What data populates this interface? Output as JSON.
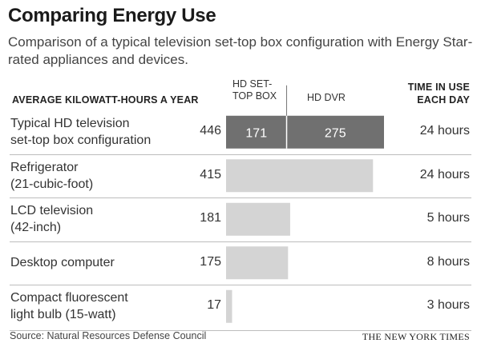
{
  "title": "Comparing Energy Use",
  "subtitle": "Comparison of a typical television set-top box configuration with Energy Star-rated appliances and devices.",
  "headers": {
    "kwh": "AVERAGE KILOWATT-HOURS A YEAR",
    "time_line1": "TIME IN USE",
    "time_line2": "EACH DAY",
    "seg1_line1": "HD SET-",
    "seg1_line2": "TOP BOX",
    "seg2": "HD DVR"
  },
  "source": "Source: Natural Resources Defense Council",
  "credit": "THE NEW YORK TIMES",
  "colors": {
    "stacked_bar": "#707070",
    "bar": "#d4d4d4",
    "divider": "#bdbdbd",
    "segment_text": "#ffffff"
  },
  "chart_data": {
    "type": "bar",
    "orientation": "horizontal",
    "categories": [
      [
        "Typical HD television",
        "set-top box configuration"
      ],
      [
        "Refrigerator",
        "(21-cubic-foot)"
      ],
      [
        "LCD television",
        "(42-inch)"
      ],
      [
        "Desktop computer"
      ],
      [
        "Compact fluorescent",
        "light bulb (15-watt)"
      ]
    ],
    "values": [
      446,
      415,
      181,
      175,
      17
    ],
    "value_labels": [
      "446",
      "415",
      "181",
      "175",
      "17"
    ],
    "time_in_use": [
      "24 hours",
      "24 hours",
      "5 hours",
      "8 hours",
      "3 hours"
    ],
    "stacked_first_row": {
      "series": [
        {
          "name": "HD SET-TOP BOX",
          "value": 171,
          "label": "171"
        },
        {
          "name": "HD DVR",
          "value": 275,
          "label": "275"
        }
      ]
    },
    "xlim": [
      0,
      446
    ]
  }
}
